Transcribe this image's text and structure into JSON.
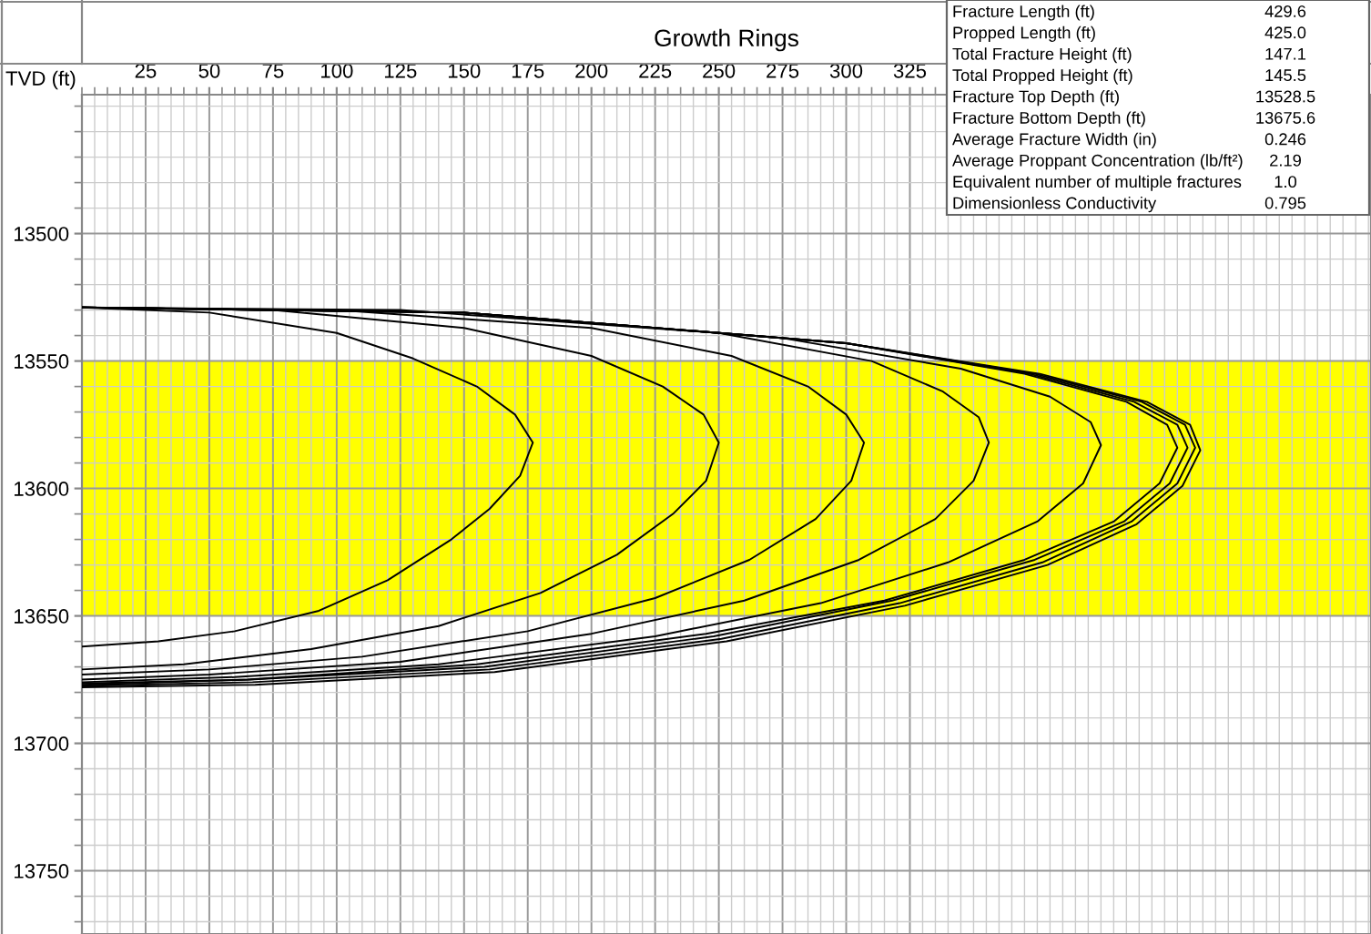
{
  "chart_data": {
    "type": "line",
    "title": "Growth Rings",
    "ylabel": "TVD (ft)",
    "xlim": [
      0,
      506
    ],
    "ylim": [
      13774.8,
      13445.5
    ],
    "xticks": [
      25,
      50,
      75,
      100,
      125,
      150,
      175,
      200,
      225,
      250,
      275,
      300,
      325
    ],
    "yticks": [
      13500,
      13550,
      13600,
      13650,
      13700,
      13750
    ],
    "grid": true,
    "legend": false,
    "marker": "none",
    "line_style": "solid",
    "bands": [
      {
        "axis": "y",
        "from": 13550,
        "to": 13650,
        "color": "#ffff00"
      }
    ],
    "annotations": [
      "Fracture Length (ft)",
      "429.6",
      "Propped Length (ft)",
      "425.0",
      "Total Fracture Height (ft)",
      "147.1",
      "Total Propped Height (ft)",
      "145.5",
      "Fracture Top Depth (ft)",
      "13528.5",
      "Fracture Bottom Depth (ft)",
      "13675.6",
      "Average Fracture Width (in)",
      "0.246",
      "Average Proppant Concentration (lb/ft²)",
      "2.19",
      "Equivalent number of multiple fractures",
      "1.0",
      "Dimensionless Conductivity",
      "0.795"
    ],
    "series": [
      {
        "color": "#000000",
        "x": [
          0,
          50,
          100,
          130,
          155,
          170,
          177,
          172,
          160,
          145,
          120,
          93,
          60,
          30,
          0
        ],
        "values": [
          13529,
          13531,
          13539,
          13549,
          13560,
          13571,
          13582,
          13595,
          13608,
          13620,
          13636,
          13648,
          13656,
          13660,
          13662
        ]
      },
      {
        "color": "#000000",
        "x": [
          0,
          75,
          150,
          200,
          228,
          244,
          250,
          245,
          232,
          210,
          180,
          140,
          90,
          40,
          0
        ],
        "values": [
          13529,
          13530,
          13537,
          13548,
          13560,
          13571,
          13582,
          13597,
          13610,
          13626,
          13641,
          13654,
          13663,
          13669,
          13671
        ]
      },
      {
        "color": "#000000",
        "x": [
          0,
          100,
          200,
          255,
          285,
          300,
          307,
          302,
          288,
          262,
          225,
          175,
          110,
          50,
          0
        ],
        "values": [
          13529,
          13530,
          13537,
          13548,
          13560,
          13571,
          13582,
          13597,
          13612,
          13628,
          13643,
          13656,
          13666,
          13671,
          13673
        ]
      },
      {
        "color": "#000000",
        "x": [
          0,
          125,
          250,
          310,
          338,
          352,
          356,
          350,
          335,
          305,
          260,
          200,
          125,
          50,
          0
        ],
        "values": [
          13529,
          13530,
          13539,
          13550,
          13562,
          13572,
          13582,
          13597,
          13612,
          13628,
          13644,
          13657,
          13668,
          13673,
          13675
        ]
      },
      {
        "color": "#000000",
        "x": [
          0,
          150,
          275,
          345,
          380,
          396,
          400,
          393,
          375,
          340,
          290,
          225,
          140,
          60,
          0
        ],
        "values": [
          13529,
          13531,
          13541,
          13553,
          13564,
          13574,
          13583,
          13598,
          13613,
          13629,
          13645,
          13658,
          13669,
          13674,
          13676
        ]
      },
      {
        "color": "#000000",
        "x": [
          0,
          150,
          300,
          370,
          410,
          426,
          430,
          423,
          405,
          370,
          315,
          245,
          155,
          65,
          0
        ],
        "values": [
          13529,
          13531,
          13543,
          13555,
          13566,
          13575,
          13584,
          13598,
          13613,
          13628,
          13644,
          13657,
          13669,
          13675,
          13676.5
        ]
      },
      {
        "color": "#000000",
        "x": [
          0,
          150,
          300,
          372,
          413,
          430,
          434,
          427,
          409,
          374,
          318,
          248,
          158,
          66,
          0
        ],
        "values": [
          13529,
          13531,
          13543,
          13555,
          13566,
          13575,
          13584,
          13598,
          13613,
          13628,
          13644,
          13658,
          13670,
          13675,
          13677
        ]
      },
      {
        "color": "#000000",
        "x": [
          0,
          150,
          300,
          374,
          416,
          433,
          437,
          430,
          412,
          377,
          321,
          251,
          160,
          67,
          0
        ],
        "values": [
          13529,
          13531,
          13543,
          13555,
          13566,
          13575,
          13584,
          13598,
          13613,
          13629,
          13645,
          13659,
          13671,
          13676,
          13677.5
        ]
      },
      {
        "color": "#000000",
        "x": [
          0,
          150,
          300,
          376,
          418,
          435,
          439,
          432,
          414,
          379,
          323,
          253,
          162,
          68,
          0
        ],
        "values": [
          13529,
          13531,
          13543,
          13555,
          13566,
          13575,
          13585,
          13599,
          13614,
          13630,
          13646,
          13660,
          13672,
          13677,
          13678
        ]
      }
    ]
  }
}
